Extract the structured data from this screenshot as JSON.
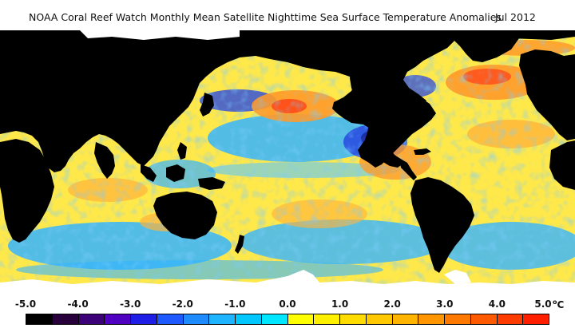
{
  "title": {
    "main": "NOAA Coral Reef Watch Monthly Mean Satellite Nighttime Sea Surface Temperature Anomalies",
    "date": "Jul 2012"
  },
  "legend": {
    "tick_labels": [
      "-5.0",
      "-4.0",
      "-3.0",
      "-2.0",
      "-1.0",
      "0.0",
      "1.0",
      "2.0",
      "3.0",
      "4.0",
      "5.0"
    ],
    "unit": "C",
    "unit_symbol": "o",
    "range": [
      -5.0,
      5.0
    ],
    "colors": [
      "#000000",
      "#28003c",
      "#3c0078",
      "#5000c0",
      "#1e1ee6",
      "#1e5aff",
      "#1e8cff",
      "#1eb4ff",
      "#00c8ff",
      "#00e6ff",
      "#ffff00",
      "#fff000",
      "#ffdc00",
      "#ffc800",
      "#ffb400",
      "#ff9600",
      "#ff7800",
      "#ff5a00",
      "#ff3c00",
      "#ff1e00"
    ]
  },
  "map_colors": {
    "land": "#000000",
    "ice": "#ffffff",
    "ocean_base": "#ffe84a",
    "warm": "#ff9a2a",
    "hot": "#ff4a1a",
    "cool": "#34b4ff",
    "cold": "#2848e0",
    "very_cold": "#1a2aa0"
  }
}
